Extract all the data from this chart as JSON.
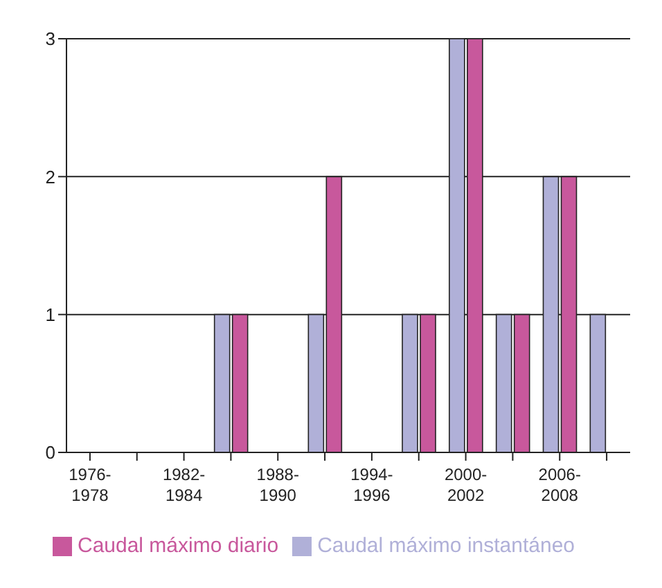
{
  "chart_data": {
    "type": "bar",
    "categories": [
      "1976-1978",
      null,
      "1982-1984",
      null,
      "1988-1990",
      null,
      "1994-1996",
      null,
      "2000-2002",
      null,
      "2006-2008",
      null
    ],
    "series": [
      {
        "name": "Caudal máximo instantáneo",
        "color": "#b0b0d8",
        "values": [
          null,
          null,
          null,
          1,
          0,
          1,
          0,
          1,
          3,
          1,
          2,
          1
        ]
      },
      {
        "name": "Caudal máximo diario",
        "color": "#c8589c",
        "values": [
          null,
          null,
          null,
          1,
          0,
          2,
          0,
          1,
          3,
          1,
          2,
          0
        ]
      }
    ],
    "ylim": [
      0,
      3
    ],
    "yticks": [
      0,
      1,
      2,
      3
    ],
    "grid": "y",
    "legend": "bottom"
  }
}
